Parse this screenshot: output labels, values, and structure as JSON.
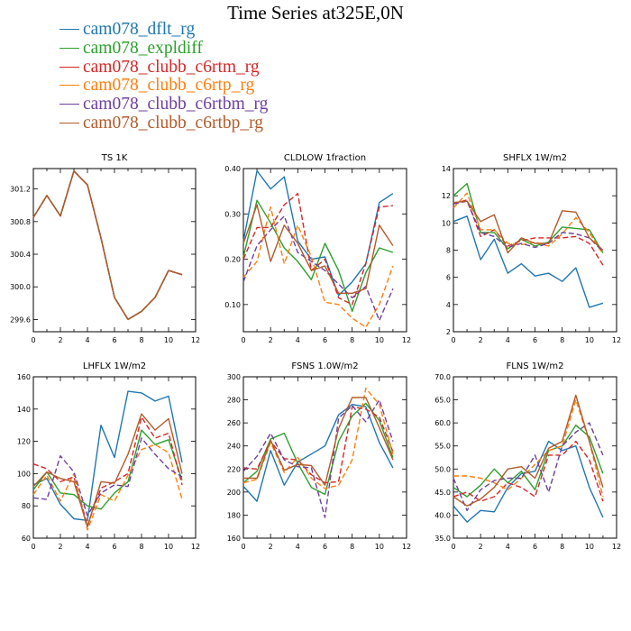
{
  "page_title": "Time Series at325E,0N",
  "legend": [
    {
      "name": "cam078_dflt_rg",
      "color": "#1f77b4"
    },
    {
      "name": "cam078_expldiff",
      "color": "#2ca02c"
    },
    {
      "name": "cam078_clubb_c6rtm_rg",
      "color": "#d62728"
    },
    {
      "name": "cam078_clubb_c6rtp_rg",
      "color": "#ff7f0e"
    },
    {
      "name": "cam078_clubb_c6rtbm_rg",
      "color": "#6f3fa0"
    },
    {
      "name": "cam078_clubb_c6rtbp_rg",
      "color": "#b35a28"
    }
  ],
  "chart_data": [
    {
      "type": "line",
      "title": "TS   1K",
      "x": [
        0,
        1,
        2,
        3,
        4,
        5,
        6,
        7,
        8,
        9,
        10,
        11
      ],
      "xlim": [
        0,
        12
      ],
      "xticks": [
        "0",
        "2",
        "4",
        "6",
        "8",
        "10",
        "12"
      ],
      "ylim": [
        299.45,
        301.45
      ],
      "yticks": [
        299.6,
        300.0,
        300.4,
        300.8,
        301.2
      ],
      "ytick_labels": [
        "299.6",
        "300.0",
        "300.4",
        "300.8",
        "301.2"
      ],
      "series": [
        {
          "values": [
            300.85,
            301.12,
            300.87,
            301.42,
            301.25,
            300.6,
            299.87,
            299.6,
            299.7,
            299.87,
            300.2,
            300.15
          ]
        },
        {
          "values": [
            300.85,
            301.12,
            300.87,
            301.42,
            301.25,
            300.6,
            299.87,
            299.6,
            299.7,
            299.87,
            300.2,
            300.15
          ]
        },
        {
          "values": [
            300.85,
            301.12,
            300.87,
            301.42,
            301.25,
            300.6,
            299.87,
            299.6,
            299.7,
            299.87,
            300.2,
            300.15
          ]
        },
        {
          "values": [
            300.85,
            301.12,
            300.87,
            301.42,
            301.25,
            300.6,
            299.87,
            299.6,
            299.7,
            299.87,
            300.2,
            300.15
          ]
        },
        {
          "values": [
            300.85,
            301.12,
            300.87,
            301.42,
            301.25,
            300.6,
            299.87,
            299.6,
            299.7,
            299.87,
            300.2,
            300.15
          ]
        },
        {
          "values": [
            300.85,
            301.12,
            300.87,
            301.42,
            301.25,
            300.6,
            299.87,
            299.6,
            299.7,
            299.87,
            300.2,
            300.15
          ]
        }
      ]
    },
    {
      "type": "line",
      "title": "CLDLOW   1fraction",
      "x": [
        0,
        1,
        2,
        3,
        4,
        5,
        6,
        7,
        8,
        9,
        10,
        11
      ],
      "xlim": [
        0,
        12
      ],
      "xticks": [
        "0",
        "2",
        "4",
        "6",
        "8",
        "10",
        "12"
      ],
      "ylim": [
        0.04,
        0.4
      ],
      "yticks": [
        0.1,
        0.2,
        0.3,
        0.4
      ],
      "ytick_labels": [
        "0.10",
        "0.20",
        "0.30",
        "0.40"
      ],
      "series": [
        {
          "values": [
            0.24,
            0.395,
            0.355,
            0.382,
            0.24,
            0.2,
            0.205,
            0.12,
            0.15,
            0.19,
            0.325,
            0.345
          ]
        },
        {
          "values": [
            0.205,
            0.33,
            0.28,
            0.225,
            0.195,
            0.155,
            0.235,
            0.175,
            0.085,
            0.17,
            0.225,
            0.215
          ]
        },
        {
          "values": [
            0.2,
            0.27,
            0.27,
            0.32,
            0.345,
            0.175,
            0.2,
            0.115,
            0.1,
            0.19,
            0.315,
            0.318
          ]
        },
        {
          "values": [
            0.16,
            0.195,
            0.315,
            0.19,
            0.275,
            0.205,
            0.105,
            0.1,
            0.07,
            0.05,
            0.1,
            0.185
          ]
        },
        {
          "values": [
            0.15,
            0.23,
            0.265,
            0.295,
            0.215,
            0.195,
            0.175,
            0.145,
            0.115,
            0.14,
            0.065,
            0.135
          ]
        },
        {
          "values": [
            0.235,
            0.32,
            0.195,
            0.275,
            0.235,
            0.175,
            0.185,
            0.125,
            0.125,
            0.135,
            0.275,
            0.23
          ]
        }
      ]
    },
    {
      "type": "line",
      "title": "SHFLX   1W/m2",
      "x": [
        0,
        1,
        2,
        3,
        4,
        5,
        6,
        7,
        8,
        9,
        10,
        11
      ],
      "xlim": [
        0,
        12
      ],
      "xticks": [
        "0",
        "2",
        "4",
        "6",
        "8",
        "10",
        "12"
      ],
      "ylim": [
        2,
        14
      ],
      "yticks": [
        2,
        4,
        6,
        8,
        10,
        12,
        14
      ],
      "ytick_labels": [
        "2",
        "4",
        "6",
        "8",
        "10",
        "12",
        "14"
      ],
      "series": [
        {
          "values": [
            10.1,
            10.5,
            7.3,
            8.8,
            6.3,
            7.0,
            6.1,
            6.3,
            5.7,
            6.7,
            3.8,
            4.1
          ]
        },
        {
          "values": [
            12.0,
            12.9,
            9.3,
            9.3,
            8.1,
            8.8,
            8.3,
            8.6,
            9.7,
            9.6,
            9.5,
            7.8
          ]
        },
        {
          "values": [
            11.4,
            11.7,
            9.0,
            9.5,
            8.3,
            8.7,
            8.9,
            8.9,
            8.9,
            9.0,
            8.5,
            6.9
          ]
        },
        {
          "values": [
            11.1,
            12.2,
            9.5,
            9.5,
            8.5,
            8.4,
            8.6,
            8.3,
            9.2,
            10.4,
            9.3,
            7.7
          ]
        },
        {
          "values": [
            11.4,
            11.6,
            9.3,
            9.0,
            8.2,
            8.5,
            8.2,
            8.5,
            9.3,
            9.2,
            8.9,
            7.9
          ]
        },
        {
          "values": [
            11.5,
            11.6,
            10.1,
            10.6,
            7.8,
            8.9,
            8.5,
            8.5,
            10.9,
            10.8,
            8.9,
            8.0
          ]
        }
      ]
    },
    {
      "type": "line",
      "title": "LHFLX   1W/m2",
      "x": [
        0,
        1,
        2,
        3,
        4,
        5,
        6,
        7,
        8,
        9,
        10,
        11
      ],
      "xlim": [
        0,
        12
      ],
      "xticks": [
        "0",
        "2",
        "4",
        "6",
        "8",
        "10",
        "12"
      ],
      "ylim": [
        60,
        160
      ],
      "yticks": [
        60,
        80,
        100,
        120,
        140,
        160
      ],
      "ytick_labels": [
        "60",
        "80",
        "100",
        "120",
        "140",
        "160"
      ],
      "series": [
        {
          "values": [
            93,
            97,
            81,
            72,
            71,
            130,
            110,
            151,
            150,
            145,
            148,
            107
          ]
        },
        {
          "values": [
            90,
            101,
            88,
            87,
            80,
            78,
            88,
            95,
            127,
            118,
            121,
            96
          ]
        },
        {
          "values": [
            106,
            103,
            95,
            98,
            68,
            91,
            95,
            100,
            135,
            122,
            125,
            93
          ]
        },
        {
          "values": [
            87,
            99,
            83,
            100,
            65,
            87,
            83,
            99,
            115,
            118,
            113,
            84
          ]
        },
        {
          "values": [
            85,
            84,
            111,
            101,
            74,
            88,
            93,
            92,
            122,
            112,
            103,
            98
          ]
        },
        {
          "values": [
            92,
            101,
            97,
            95,
            67,
            95,
            94,
            112,
            137,
            127,
            134,
            100
          ]
        }
      ]
    },
    {
      "type": "line",
      "title": "FSNS   1.0W/m2",
      "x": [
        0,
        1,
        2,
        3,
        4,
        5,
        6,
        7,
        8,
        9,
        10,
        11
      ],
      "xlim": [
        0,
        12
      ],
      "xticks": [
        "0",
        "2",
        "4",
        "6",
        "8",
        "10",
        "12"
      ],
      "ylim": [
        160,
        300
      ],
      "yticks": [
        160,
        180,
        200,
        220,
        240,
        260,
        280,
        300
      ],
      "ytick_labels": [
        "160",
        "180",
        "200",
        "220",
        "240",
        "260",
        "280",
        "300"
      ],
      "series": [
        {
          "values": [
            205,
            192,
            236,
            206,
            226,
            233,
            240,
            267,
            276,
            274,
            243,
            221
          ]
        },
        {
          "values": [
            208,
            218,
            246,
            251,
            225,
            204,
            198,
            244,
            266,
            277,
            262,
            230
          ]
        },
        {
          "values": [
            221,
            220,
            244,
            229,
            228,
            215,
            208,
            209,
            274,
            272,
            265,
            235
          ]
        },
        {
          "values": [
            208,
            211,
            243,
            217,
            230,
            212,
            203,
            206,
            228,
            290,
            276,
            233
          ]
        },
        {
          "values": [
            218,
            231,
            251,
            228,
            222,
            221,
            178,
            264,
            275,
            261,
            280,
            244
          ]
        },
        {
          "values": [
            212,
            212,
            245,
            219,
            224,
            223,
            206,
            255,
            282,
            282,
            256,
            228
          ]
        }
      ]
    },
    {
      "type": "line",
      "title": "FLNS   1W/m2",
      "x": [
        0,
        1,
        2,
        3,
        4,
        5,
        6,
        7,
        8,
        9,
        10,
        11
      ],
      "xlim": [
        0,
        12
      ],
      "xticks": [
        "0",
        "2",
        "4",
        "6",
        "8",
        "10",
        "12"
      ],
      "ylim": [
        35,
        70
      ],
      "yticks": [
        35,
        40,
        45,
        50,
        55,
        60,
        65,
        70
      ],
      "ytick_labels": [
        "35.0",
        "40.0",
        "45.0",
        "50.0",
        "55.0",
        "60.0",
        "65.0",
        "70.0"
      ],
      "series": [
        {
          "values": [
            42.0,
            38.5,
            41.0,
            40.7,
            46.0,
            49.0,
            49.5,
            56.0,
            54.0,
            55.0,
            46.0,
            39.5
          ]
        },
        {
          "values": [
            46.0,
            44.0,
            46.5,
            50.0,
            47.0,
            49.5,
            45.5,
            54.0,
            55.0,
            59.5,
            57.0,
            49.0
          ]
        },
        {
          "values": [
            44.0,
            45.0,
            43.0,
            44.0,
            47.0,
            46.0,
            44.0,
            53.0,
            53.0,
            56.0,
            52.0,
            43.0
          ]
        },
        {
          "values": [
            48.5,
            48.5,
            48.0,
            47.0,
            45.5,
            48.0,
            51.0,
            54.0,
            55.0,
            65.0,
            56.0,
            44.0
          ]
        },
        {
          "values": [
            48.0,
            41.0,
            45.5,
            47.5,
            48.0,
            48.0,
            53.0,
            45.0,
            55.0,
            58.0,
            60.0,
            53.0
          ]
        },
        {
          "values": [
            44.0,
            42.0,
            43.5,
            46.0,
            50.0,
            50.5,
            48.0,
            54.5,
            56.0,
            66.0,
            56.0,
            46.0
          ]
        }
      ]
    }
  ]
}
